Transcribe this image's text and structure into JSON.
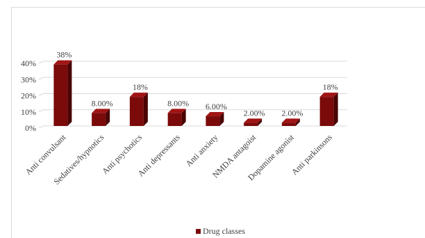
{
  "chart_data": {
    "type": "bar",
    "style": "3d-column",
    "categories": [
      "Anti convulsant",
      "Sedatives/hypnotics",
      "Anti psychotics",
      "Anti depressants",
      "Anti anxiety",
      "NMDA antagoist",
      "Dopamine agonist",
      "Anti parkinsons"
    ],
    "series": [
      {
        "name": "Drug classes",
        "values": [
          38,
          8,
          18,
          8,
          6,
          2,
          2,
          18
        ],
        "data_labels": [
          "38%",
          "8.00%",
          "18%",
          "8.00%",
          "6.00%",
          "2.00%",
          "2.00%",
          "18%"
        ]
      }
    ],
    "y_ticks": [
      "0%",
      "10%",
      "20%",
      "30%",
      "40%"
    ],
    "ylim": [
      0,
      40
    ],
    "grid": true,
    "legend_position": "bottom",
    "colors": {
      "bar_front": "#7b0a0a",
      "bar_side": "#4a0404",
      "bar_top": "#a11515",
      "grid": "#d9d9d9",
      "text": "#404040"
    }
  }
}
